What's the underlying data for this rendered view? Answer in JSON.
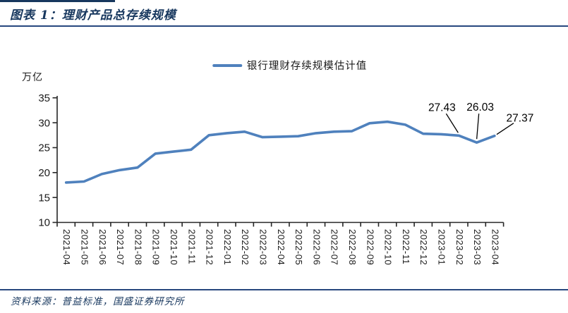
{
  "header": {
    "title": "图表 1：理财产品总存续规模"
  },
  "footer": {
    "source": "资料来源：普益标准，国盛证券研究所"
  },
  "colors": {
    "accent_navy": "#17375E",
    "rule_navy": "#27477E",
    "line_blue": "#4F81BD",
    "axis_black": "#262626",
    "tick_text": "#1a1a1a"
  },
  "chart_data": {
    "type": "line",
    "unit_label": "万亿",
    "legend_position": "top-center",
    "grid": false,
    "ylim": [
      10,
      35
    ],
    "yticks": [
      10,
      15,
      20,
      25,
      30,
      35
    ],
    "categories": [
      "2021-04",
      "2021-05",
      "2021-06",
      "2021-07",
      "2021-08",
      "2021-09",
      "2021-10",
      "2021-11",
      "2021-12",
      "2022-01",
      "2022-02",
      "2022-03",
      "2022-04",
      "2022-05",
      "2022-06",
      "2022-07",
      "2022-08",
      "2022-09",
      "2022-10",
      "2022-11",
      "2022-12",
      "2023-01",
      "2023-02",
      "2023-03",
      "2023-04"
    ],
    "series": [
      {
        "name": "银行理财存续规模估计值",
        "values": [
          18.0,
          18.2,
          19.7,
          20.5,
          21.0,
          23.8,
          24.2,
          24.6,
          27.5,
          27.9,
          28.2,
          27.1,
          27.2,
          27.3,
          27.9,
          28.2,
          28.3,
          29.9,
          30.2,
          29.6,
          27.8,
          27.7,
          27.43,
          26.03,
          27.37
        ]
      }
    ],
    "annotations": [
      {
        "text": "27.43",
        "category": "2023-02"
      },
      {
        "text": "26.03",
        "category": "2023-03"
      },
      {
        "text": "27.37",
        "category": "2023-04"
      }
    ]
  }
}
